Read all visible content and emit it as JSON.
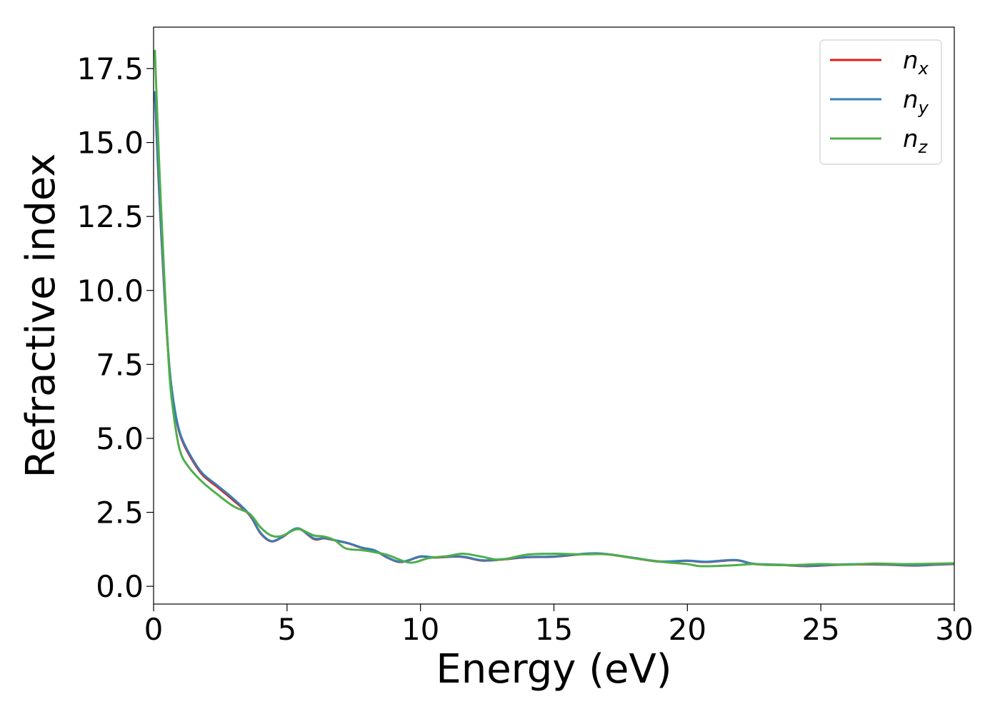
{
  "chart_data": {
    "type": "line",
    "title": "",
    "xlabel": "Energy (eV)",
    "ylabel": "Refractive index",
    "xlim": [
      0,
      30
    ],
    "ylim": [
      -0.6,
      18.9
    ],
    "xticks": [
      0,
      5,
      10,
      15,
      20,
      25,
      30
    ],
    "xtick_labels": [
      "0",
      "5",
      "10",
      "15",
      "20",
      "25",
      "30"
    ],
    "yticks": [
      0,
      2.5,
      5,
      7.5,
      10,
      12.5,
      15,
      17.5
    ],
    "ytick_labels": [
      "0.0",
      "2.5",
      "5.0",
      "7.5",
      "10.0",
      "12.5",
      "15.0",
      "17.5"
    ],
    "grid": false,
    "legend": {
      "placement": "top-right",
      "entries": [
        {
          "base": "n",
          "sub": "x",
          "color": "#e41a1c"
        },
        {
          "base": "n",
          "sub": "y",
          "color": "#377eb8"
        },
        {
          "base": "n",
          "sub": "z",
          "color": "#4daf4a"
        }
      ]
    },
    "series": [
      {
        "key": "nx",
        "color": "#e41a1c",
        "x": [
          0.05,
          0.2,
          0.4,
          0.6,
          0.8,
          1.0,
          1.3,
          1.8,
          2.4,
          3.0,
          3.6,
          4.0,
          4.4,
          4.8,
          5.4,
          6.0,
          6.4,
          6.8,
          7.3,
          7.8,
          8.3,
          8.8,
          9.3,
          10.0,
          10.5,
          11.5,
          12.3,
          13.0,
          14.0,
          15.0,
          16.3,
          17.0,
          18.0,
          19.0,
          20.0,
          20.7,
          21.8,
          22.5,
          23.5,
          24.5,
          25.5,
          26.5,
          27.5,
          28.5,
          29.3,
          30.0
        ],
        "y": [
          16.6,
          13.5,
          10.0,
          7.3,
          5.9,
          5.1,
          4.5,
          3.8,
          3.35,
          2.9,
          2.4,
          1.8,
          1.52,
          1.65,
          1.95,
          1.6,
          1.62,
          1.55,
          1.45,
          1.3,
          1.2,
          0.95,
          0.82,
          1.0,
          0.97,
          1.0,
          0.87,
          0.9,
          0.98,
          1.0,
          1.1,
          1.08,
          0.95,
          0.83,
          0.86,
          0.82,
          0.88,
          0.75,
          0.72,
          0.68,
          0.72,
          0.74,
          0.73,
          0.7,
          0.73,
          0.75
        ]
      },
      {
        "key": "ny",
        "color": "#377eb8",
        "x": [
          0.05,
          0.2,
          0.4,
          0.6,
          0.8,
          1.0,
          1.3,
          1.8,
          2.4,
          3.0,
          3.6,
          4.0,
          4.4,
          4.8,
          5.4,
          6.0,
          6.4,
          6.8,
          7.3,
          7.8,
          8.3,
          8.8,
          9.3,
          10.0,
          10.5,
          11.5,
          12.3,
          13.0,
          14.0,
          15.0,
          16.3,
          17.0,
          18.0,
          19.0,
          20.0,
          20.7,
          21.8,
          22.5,
          23.5,
          24.5,
          25.5,
          26.5,
          27.5,
          28.5,
          29.3,
          30.0
        ],
        "y": [
          16.7,
          13.6,
          10.1,
          7.35,
          5.95,
          5.15,
          4.55,
          3.85,
          3.4,
          2.95,
          2.42,
          1.82,
          1.53,
          1.66,
          1.96,
          1.62,
          1.63,
          1.56,
          1.46,
          1.31,
          1.21,
          0.96,
          0.83,
          1.01,
          0.98,
          1.01,
          0.88,
          0.91,
          0.99,
          1.01,
          1.11,
          1.09,
          0.96,
          0.84,
          0.87,
          0.83,
          0.89,
          0.76,
          0.73,
          0.69,
          0.73,
          0.75,
          0.74,
          0.71,
          0.74,
          0.76
        ]
      },
      {
        "key": "nz",
        "color": "#4daf4a",
        "x": [
          0.05,
          0.2,
          0.4,
          0.6,
          0.8,
          1.0,
          1.3,
          1.8,
          2.4,
          3.0,
          3.6,
          4.0,
          4.4,
          4.8,
          5.4,
          6.0,
          6.4,
          6.8,
          7.2,
          7.8,
          8.3,
          8.8,
          9.6,
          10.3,
          11.0,
          11.6,
          12.3,
          13.0,
          14.0,
          15.0,
          16.0,
          17.0,
          18.0,
          19.0,
          20.0,
          20.5,
          21.5,
          22.5,
          23.0,
          24.0,
          25.0,
          26.0,
          27.0,
          28.0,
          29.0,
          30.0
        ],
        "y": [
          18.1,
          14.5,
          10.5,
          7.1,
          5.5,
          4.55,
          4.05,
          3.55,
          3.1,
          2.7,
          2.45,
          2.0,
          1.72,
          1.7,
          1.93,
          1.72,
          1.68,
          1.55,
          1.28,
          1.22,
          1.15,
          1.05,
          0.8,
          0.95,
          1.02,
          1.1,
          1.0,
          0.9,
          1.07,
          1.1,
          1.08,
          1.08,
          0.95,
          0.83,
          0.75,
          0.68,
          0.7,
          0.75,
          0.72,
          0.72,
          0.75,
          0.73,
          0.77,
          0.75,
          0.76,
          0.78
        ]
      }
    ]
  }
}
